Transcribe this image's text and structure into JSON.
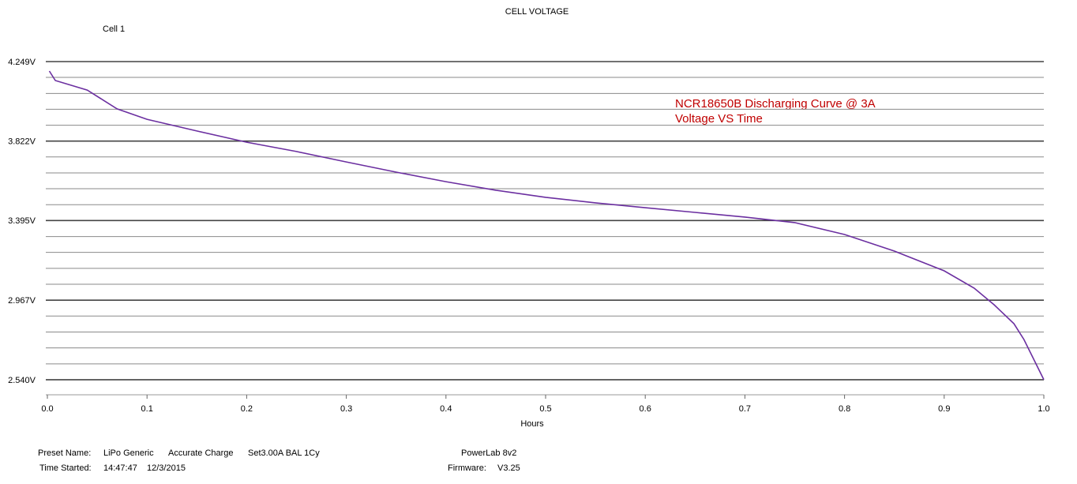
{
  "chart_data": {
    "type": "line",
    "title": "CELL VOLTAGE",
    "xlabel": "Hours",
    "x": [
      0.002,
      0.008,
      0.04,
      0.07,
      0.1,
      0.15,
      0.2,
      0.25,
      0.3,
      0.35,
      0.4,
      0.45,
      0.5,
      0.55,
      0.6,
      0.65,
      0.7,
      0.75,
      0.8,
      0.85,
      0.9,
      0.93,
      0.95,
      0.97,
      0.98,
      1.0
    ],
    "series": [
      {
        "name": "Cell 1",
        "color": "#6b2fa0",
        "values": [
          4.198,
          4.147,
          4.096,
          3.995,
          3.939,
          3.876,
          3.816,
          3.766,
          3.71,
          3.655,
          3.604,
          3.558,
          3.52,
          3.49,
          3.464,
          3.439,
          3.414,
          3.384,
          3.32,
          3.231,
          3.125,
          3.032,
          2.943,
          2.841,
          2.756,
          2.54
        ]
      }
    ],
    "xlim": [
      0,
      1
    ],
    "ylim": [
      2.459,
      4.249
    ],
    "xticks": [
      {
        "value": 0,
        "label": "0.0"
      },
      0.1,
      0.2,
      0.3,
      0.4,
      0.5,
      0.6,
      0.7,
      0.8,
      0.9,
      {
        "value": 1,
        "label": "1.0"
      }
    ],
    "yticks": [
      {
        "value": 4.249,
        "label": "4.249V"
      },
      {
        "value": 3.822,
        "label": "3.822V"
      },
      {
        "value": 3.395,
        "label": "3.395V"
      },
      {
        "value": 2.967,
        "label": "2.967V"
      },
      {
        "value": 2.54,
        "label": "2.540V"
      }
    ],
    "minor_yticks": [
      4.164,
      4.078,
      3.993,
      3.907,
      3.737,
      3.651,
      3.566,
      3.48,
      3.309,
      3.224,
      3.138,
      3.053,
      2.882,
      2.796,
      2.711,
      2.625
    ],
    "grid": true,
    "annotations": [
      "NCR18650B Discharging Curve @ 3A",
      "Voltage VS Time"
    ]
  },
  "footer": {
    "preset_label": "Preset Name:",
    "preset": "LiPo Generic",
    "mode": "Accurate Charge",
    "setting": "Set3.00A BAL 1Cy",
    "time_label": "Time Started:",
    "time": "14:47:47",
    "date": "12/3/2015",
    "device": "PowerLab 8v2",
    "firmware_label": "Firmware:",
    "firmware": "V3.25"
  }
}
